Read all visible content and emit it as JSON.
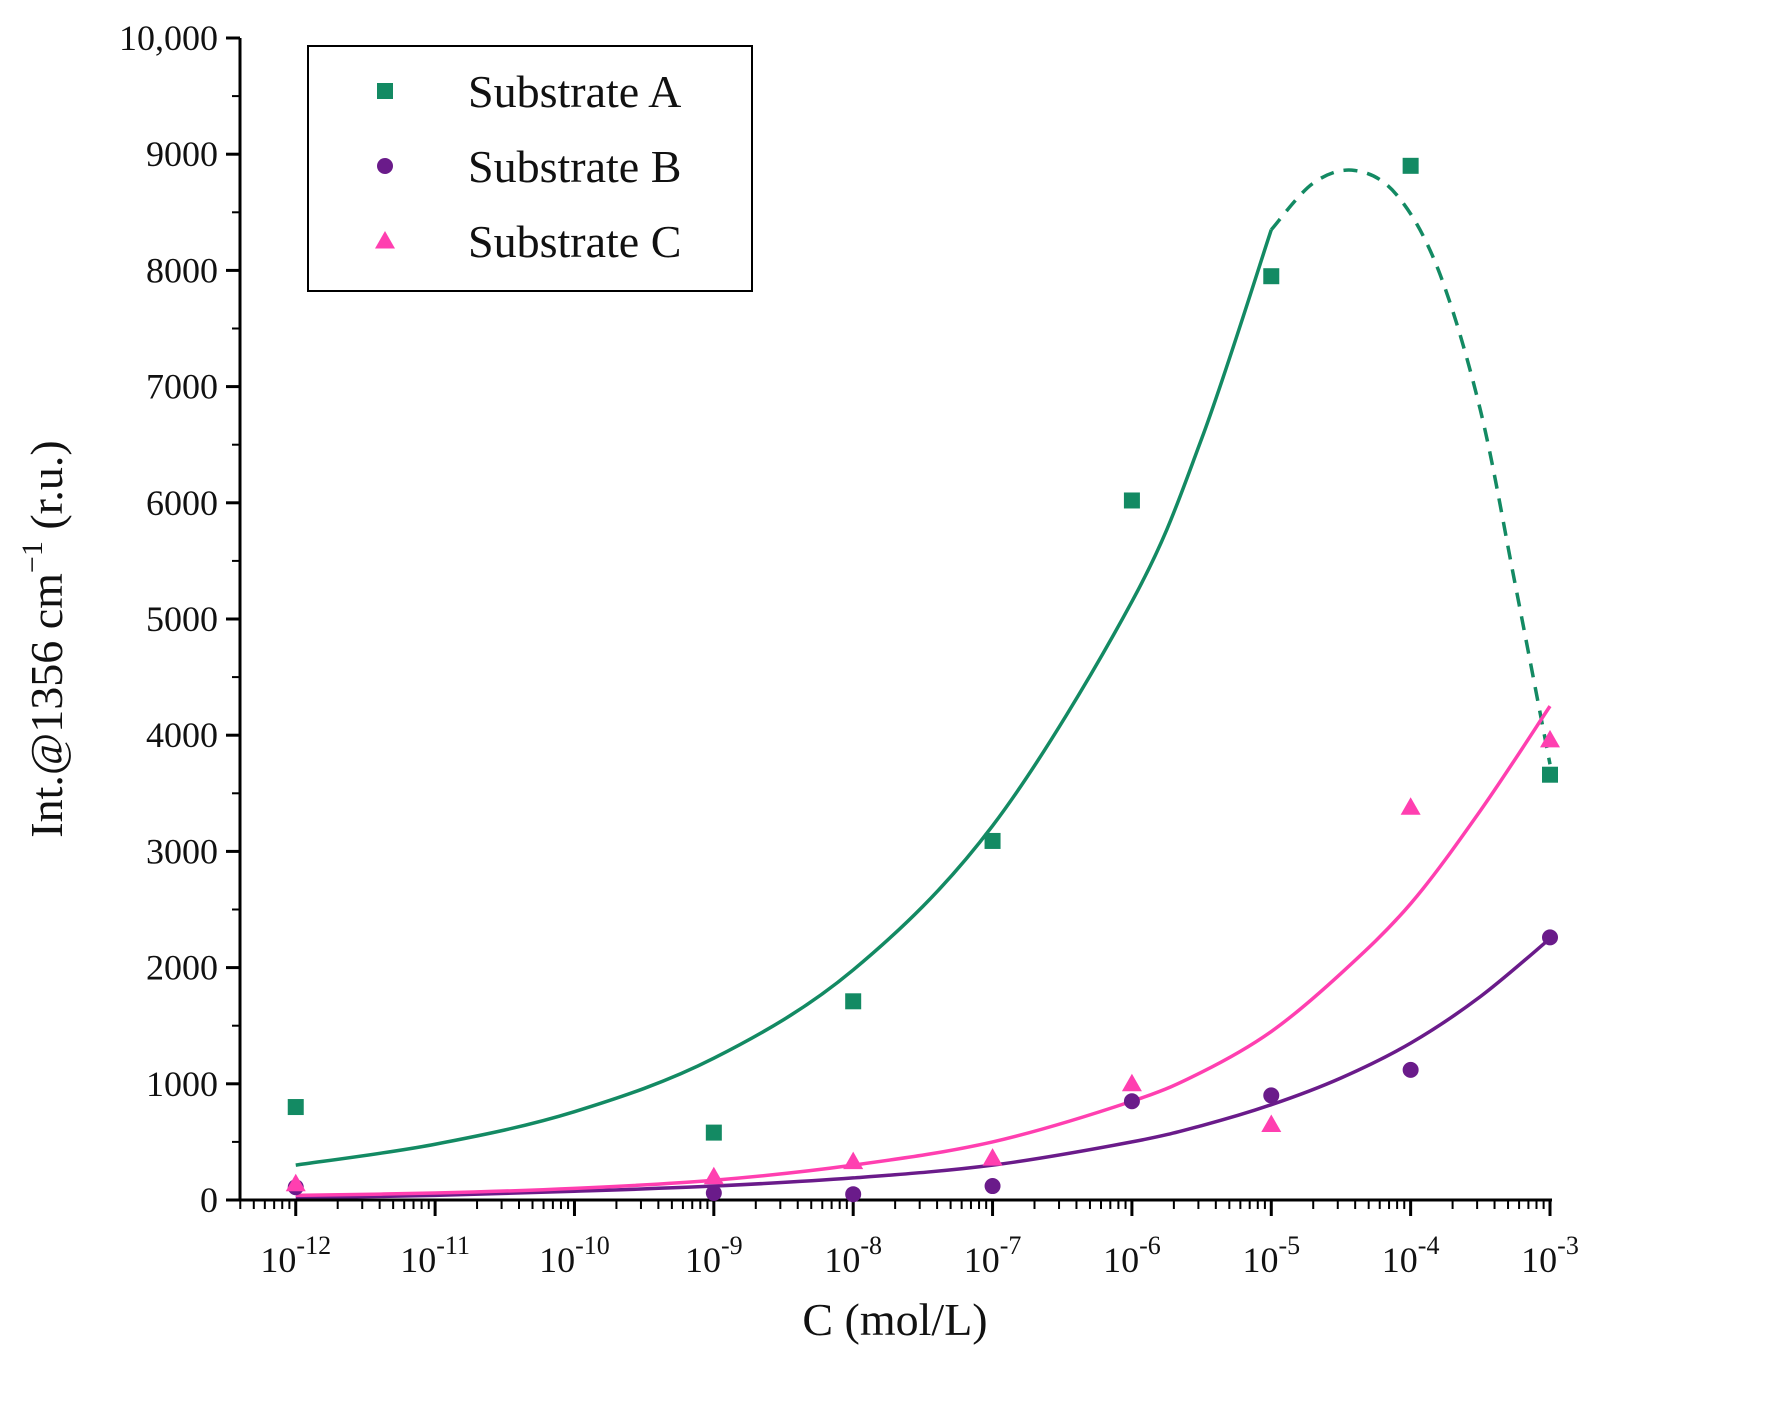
{
  "chart_data": {
    "type": "scatter",
    "title": "",
    "xlabel": "C (mol/L)",
    "ylabel_main": "Int.@1356 cm",
    "ylabel_sup": "−1",
    "ylabel_tail": " (r.u.)",
    "x_scale": "log10",
    "xlim_exp": [
      -12.4,
      -3.0
    ],
    "ylim": [
      0,
      10000
    ],
    "x_ticks": [
      {
        "base": "10",
        "exp": "-12",
        "value": -12
      },
      {
        "base": "10",
        "exp": "-11",
        "value": -11
      },
      {
        "base": "10",
        "exp": "-10",
        "value": -10
      },
      {
        "base": "10",
        "exp": "-9",
        "value": -9
      },
      {
        "base": "10",
        "exp": "-8",
        "value": -8
      },
      {
        "base": "10",
        "exp": "-7",
        "value": -7
      },
      {
        "base": "10",
        "exp": "-6",
        "value": -6
      },
      {
        "base": "10",
        "exp": "-5",
        "value": -5
      },
      {
        "base": "10",
        "exp": "-4",
        "value": -4
      },
      {
        "base": "10",
        "exp": "-3",
        "value": -3
      }
    ],
    "y_ticks": [
      {
        "label": "0",
        "value": 0
      },
      {
        "label": "1000",
        "value": 1000
      },
      {
        "label": "2000",
        "value": 2000
      },
      {
        "label": "3000",
        "value": 3000
      },
      {
        "label": "4000",
        "value": 4000
      },
      {
        "label": "5000",
        "value": 5000
      },
      {
        "label": "6000",
        "value": 6000
      },
      {
        "label": "7000",
        "value": 7000
      },
      {
        "label": "8000",
        "value": 8000
      },
      {
        "label": "9000",
        "value": 9000
      },
      {
        "label": "10,000",
        "value": 10000
      }
    ],
    "legend_position": "top-left",
    "series": [
      {
        "name": "Substrate A",
        "color": "#138a63",
        "marker": "square",
        "points": [
          {
            "x": -12,
            "y": 800
          },
          {
            "x": -9,
            "y": 580
          },
          {
            "x": -8,
            "y": 1710
          },
          {
            "x": -7,
            "y": 3090
          },
          {
            "x": -6,
            "y": 6020
          },
          {
            "x": -5,
            "y": 7950
          },
          {
            "x": -4,
            "y": 8900
          },
          {
            "x": -3,
            "y": 3660
          }
        ],
        "fit_solid": [
          {
            "x": -12,
            "y": 300
          },
          {
            "x": -11,
            "y": 480
          },
          {
            "x": -10,
            "y": 760
          },
          {
            "x": -9,
            "y": 1220
          },
          {
            "x": -8,
            "y": 1980
          },
          {
            "x": -7,
            "y": 3220
          },
          {
            "x": -6,
            "y": 5150
          },
          {
            "x": -5.5,
            "y": 6550
          },
          {
            "x": -5,
            "y": 8350
          }
        ],
        "fit_dashed": [
          {
            "x": -5,
            "y": 8350
          },
          {
            "x": -4.7,
            "y": 8750
          },
          {
            "x": -4.4,
            "y": 8860
          },
          {
            "x": -4.1,
            "y": 8650
          },
          {
            "x": -3.8,
            "y": 8000
          },
          {
            "x": -3.5,
            "y": 6800
          },
          {
            "x": -3.25,
            "y": 5300
          },
          {
            "x": -3.0,
            "y": 3750
          }
        ]
      },
      {
        "name": "Substrate B",
        "color": "#6a1b8a",
        "marker": "circle",
        "points": [
          {
            "x": -12,
            "y": 110
          },
          {
            "x": -9,
            "y": 60
          },
          {
            "x": -8,
            "y": 50
          },
          {
            "x": -7,
            "y": 120
          },
          {
            "x": -6,
            "y": 850
          },
          {
            "x": -5,
            "y": 900
          },
          {
            "x": -4,
            "y": 1120
          },
          {
            "x": -3,
            "y": 2260
          }
        ],
        "fit_solid": [
          {
            "x": -12,
            "y": 20
          },
          {
            "x": -11,
            "y": 40
          },
          {
            "x": -10,
            "y": 75
          },
          {
            "x": -9,
            "y": 120
          },
          {
            "x": -8,
            "y": 190
          },
          {
            "x": -7,
            "y": 300
          },
          {
            "x": -6,
            "y": 500
          },
          {
            "x": -5.5,
            "y": 640
          },
          {
            "x": -5,
            "y": 820
          },
          {
            "x": -4.5,
            "y": 1050
          },
          {
            "x": -4,
            "y": 1350
          },
          {
            "x": -3.5,
            "y": 1750
          },
          {
            "x": -3,
            "y": 2250
          }
        ]
      },
      {
        "name": "Substrate C",
        "color": "#ff3fb0",
        "marker": "triangle",
        "points": [
          {
            "x": -12,
            "y": 140
          },
          {
            "x": -9,
            "y": 200
          },
          {
            "x": -8,
            "y": 330
          },
          {
            "x": -7,
            "y": 360
          },
          {
            "x": -6,
            "y": 1000
          },
          {
            "x": -5,
            "y": 650
          },
          {
            "x": -4,
            "y": 3380
          },
          {
            "x": -3,
            "y": 3960
          }
        ],
        "fit_solid": [
          {
            "x": -12,
            "y": 40
          },
          {
            "x": -11,
            "y": 60
          },
          {
            "x": -10,
            "y": 100
          },
          {
            "x": -9,
            "y": 170
          },
          {
            "x": -8,
            "y": 300
          },
          {
            "x": -7,
            "y": 500
          },
          {
            "x": -6,
            "y": 850
          },
          {
            "x": -5.5,
            "y": 1100
          },
          {
            "x": -5,
            "y": 1450
          },
          {
            "x": -4.5,
            "y": 1950
          },
          {
            "x": -4,
            "y": 2550
          },
          {
            "x": -3.5,
            "y": 3350
          },
          {
            "x": -3,
            "y": 4250
          }
        ]
      }
    ]
  }
}
